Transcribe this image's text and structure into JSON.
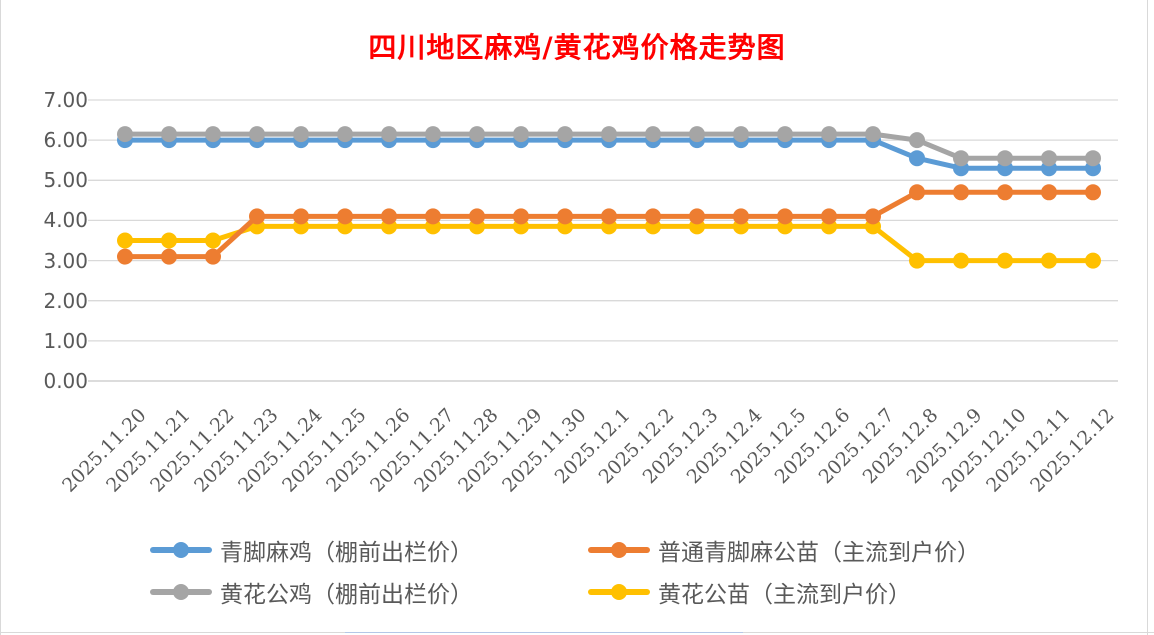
{
  "title": {
    "text": "四川地区麻鸡/黄花鸡价格走势图",
    "color": "#FF0000"
  },
  "chart_data": {
    "type": "line",
    "title": "四川地区麻鸡/黄花鸡价格走势图",
    "categories": [
      "2025.11.20",
      "2025.11.21",
      "2025.11.22",
      "2025.11.23",
      "2025.11.24",
      "2025.11.25",
      "2025.11.26",
      "2025.11.27",
      "2025.11.28",
      "2025.11.29",
      "2025.11.30",
      "2025.12.1",
      "2025.12.2",
      "2025.12.3",
      "2025.12.4",
      "2025.12.5",
      "2025.12.6",
      "2025.12.7",
      "2025.12.8",
      "2025.12.9",
      "2025.12.10",
      "2025.12.11",
      "2025.12.12"
    ],
    "series": [
      {
        "name": "青脚麻鸡（棚前出栏价）",
        "color": "#5B9BD5",
        "values": [
          6.0,
          6.0,
          6.0,
          6.0,
          6.0,
          6.0,
          6.0,
          6.0,
          6.0,
          6.0,
          6.0,
          6.0,
          6.0,
          6.0,
          6.0,
          6.0,
          6.0,
          6.0,
          5.55,
          5.3,
          5.3,
          5.3,
          5.3
        ]
      },
      {
        "name": "普通青脚麻公苗（主流到户价）",
        "color": "#ED7D31",
        "values": [
          3.1,
          3.1,
          3.1,
          4.1,
          4.1,
          4.1,
          4.1,
          4.1,
          4.1,
          4.1,
          4.1,
          4.1,
          4.1,
          4.1,
          4.1,
          4.1,
          4.1,
          4.1,
          4.7,
          4.7,
          4.7,
          4.7,
          4.7
        ]
      },
      {
        "name": "黄花公鸡（棚前出栏价）",
        "color": "#A5A5A5",
        "values": [
          6.15,
          6.15,
          6.15,
          6.15,
          6.15,
          6.15,
          6.15,
          6.15,
          6.15,
          6.15,
          6.15,
          6.15,
          6.15,
          6.15,
          6.15,
          6.15,
          6.15,
          6.15,
          6.0,
          5.55,
          5.55,
          5.55,
          5.55
        ]
      },
      {
        "name": "黄花公苗（主流到户价）",
        "color": "#FFC000",
        "values": [
          3.5,
          3.5,
          3.5,
          3.85,
          3.85,
          3.85,
          3.85,
          3.85,
          3.85,
          3.85,
          3.85,
          3.85,
          3.85,
          3.85,
          3.85,
          3.85,
          3.85,
          3.85,
          3.0,
          3.0,
          3.0,
          3.0,
          3.0
        ]
      }
    ],
    "ylim": [
      0,
      7
    ],
    "y_ticks": [
      "7.00",
      "6.00",
      "5.00",
      "4.00",
      "3.00",
      "2.00",
      "1.00",
      "0.00"
    ],
    "grid": "horizontal",
    "legend_position": "bottom-two-columns",
    "style": {
      "gridline_color": "#d9d9d9",
      "axis_line_color": "#c6c6c6",
      "tick_label_color": "#595959"
    }
  }
}
